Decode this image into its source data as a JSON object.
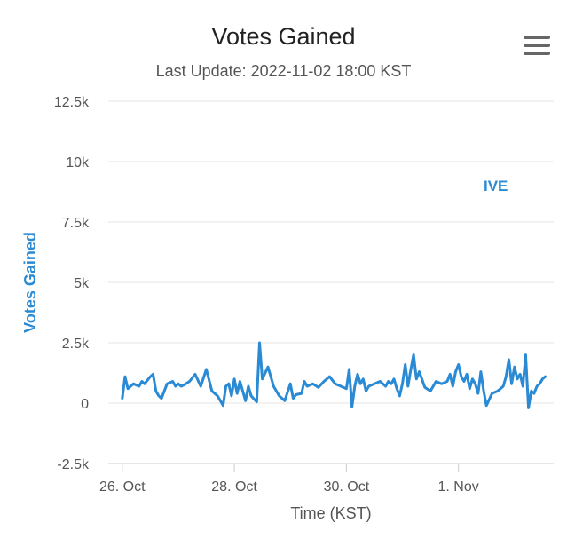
{
  "chart_data": {
    "type": "line",
    "title": "Votes Gained",
    "subtitle": "Last Update: 2022-11-02 18:00 KST",
    "xlabel": "Time (KST)",
    "ylabel": "Votes Gained",
    "ylim": [
      -2500,
      12500
    ],
    "y_ticks": [
      -2500,
      0,
      2500,
      5000,
      7500,
      10000,
      12500
    ],
    "y_tick_labels": [
      "-2.5k",
      "0",
      "2.5k",
      "5k",
      "7.5k",
      "10k",
      "12.5k"
    ],
    "x_range_days": [
      -0.25,
      7.7
    ],
    "x_ticks": [
      0,
      2,
      4,
      6
    ],
    "x_tick_labels": [
      "26. Oct",
      "28. Oct",
      "30. Oct",
      "1. Nov"
    ],
    "grid": true,
    "line_color": "#2a8ad4",
    "series": [
      {
        "name": "IVE",
        "x": [
          0.0,
          0.05,
          0.1,
          0.2,
          0.3,
          0.35,
          0.4,
          0.5,
          0.55,
          0.6,
          0.65,
          0.7,
          0.8,
          0.9,
          0.95,
          1.0,
          1.05,
          1.1,
          1.2,
          1.3,
          1.4,
          1.5,
          1.6,
          1.7,
          1.8,
          1.85,
          1.9,
          1.95,
          2.0,
          2.05,
          2.1,
          2.2,
          2.25,
          2.3,
          2.4,
          2.45,
          2.5,
          2.6,
          2.7,
          2.8,
          2.9,
          3.0,
          3.05,
          3.1,
          3.2,
          3.25,
          3.3,
          3.4,
          3.5,
          3.6,
          3.7,
          3.8,
          3.9,
          4.0,
          4.05,
          4.1,
          4.15,
          4.2,
          4.25,
          4.3,
          4.35,
          4.4,
          4.5,
          4.6,
          4.7,
          4.75,
          4.8,
          4.85,
          4.9,
          4.95,
          5.0,
          5.05,
          5.1,
          5.15,
          5.2,
          5.25,
          5.3,
          5.4,
          5.5,
          5.6,
          5.7,
          5.8,
          5.85,
          5.9,
          5.95,
          6.0,
          6.05,
          6.1,
          6.15,
          6.2,
          6.25,
          6.3,
          6.35,
          6.4,
          6.45,
          6.5,
          6.6,
          6.7,
          6.8,
          6.85,
          6.9,
          6.95,
          7.0,
          7.05,
          7.1,
          7.15,
          7.2,
          7.25,
          7.3,
          7.35,
          7.4,
          7.45,
          7.5,
          7.55
        ],
        "y": [
          200,
          1100,
          600,
          800,
          700,
          900,
          800,
          1100,
          1200,
          500,
          300,
          200,
          800,
          900,
          700,
          800,
          700,
          750,
          900,
          1200,
          700,
          1400,
          500,
          300,
          -100,
          700,
          800,
          300,
          1000,
          400,
          900,
          100,
          700,
          300,
          50,
          2500,
          1000,
          1500,
          700,
          300,
          100,
          800,
          200,
          350,
          400,
          900,
          700,
          800,
          650,
          900,
          1100,
          800,
          700,
          600,
          1400,
          -150,
          700,
          1200,
          800,
          1000,
          500,
          700,
          800,
          900,
          700,
          900,
          800,
          1000,
          600,
          300,
          800,
          1600,
          700,
          1400,
          2000,
          1000,
          1300,
          650,
          500,
          900,
          800,
          900,
          1200,
          700,
          1300,
          1600,
          1100,
          900,
          1200,
          600,
          1000,
          800,
          400,
          1300,
          500,
          -100,
          400,
          500,
          700,
          1100,
          1800,
          800,
          1500,
          1000,
          1200,
          700,
          2000,
          -200,
          500,
          400,
          700,
          800,
          1000,
          1100
        ],
        "line_color": "#2a8ad4"
      }
    ]
  }
}
